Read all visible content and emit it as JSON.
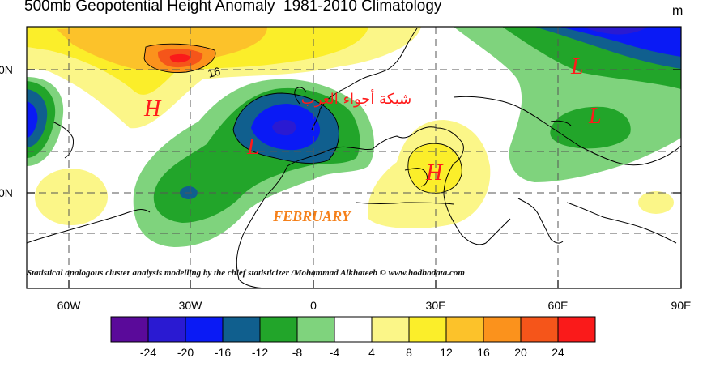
{
  "title": "500mb Geopotential Height Anomaly  1981-2010 Climatology",
  "unit": "m",
  "month_label": "FEBRUARY",
  "arabic_text": "شبكة أجواء العرب",
  "credit": "Statistical analogous cluster analysis modelling by the chief statisticizer /Mohammad Alkhateeb © www.hodhodata.com",
  "lon_ticks": [
    "60W",
    "30W",
    "0",
    "30E",
    "60E",
    "90E"
  ],
  "lat_ticks": [
    "0N",
    "0N"
  ],
  "contour_label": "16",
  "systems": [
    {
      "id": "H1",
      "letter": "H"
    },
    {
      "id": "L1",
      "letter": "L"
    },
    {
      "id": "H2",
      "letter": "H"
    },
    {
      "id": "L2",
      "letter": "L"
    },
    {
      "id": "L3",
      "letter": "L"
    }
  ],
  "colorbar": {
    "colors": [
      "#5a0a9a",
      "#2a1ad2",
      "#0a1af5",
      "#105f8e",
      "#22a52a",
      "#7fd37d",
      "#ffffff",
      "#fbf688",
      "#fbee2a",
      "#fcc22a",
      "#fb921c",
      "#f5551a",
      "#fa1a1a"
    ],
    "labels": [
      "-24",
      "-20",
      "-16",
      "-12",
      "-8",
      "-4",
      "4",
      "8",
      "12",
      "16",
      "20",
      "24"
    ]
  }
}
